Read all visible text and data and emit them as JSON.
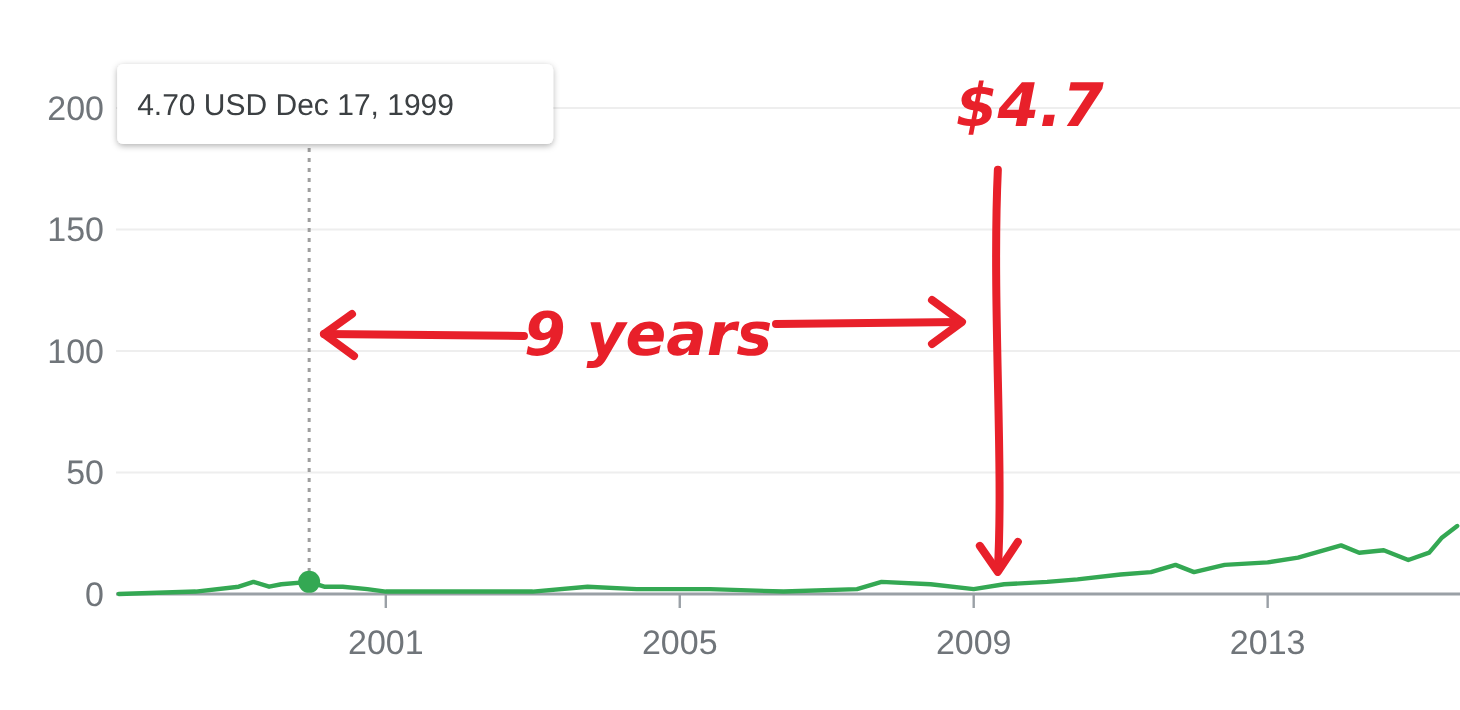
{
  "chart_data": {
    "type": "line",
    "xlim": [
      "1997-05-01",
      "2015-08-15"
    ],
    "xticks": [
      {
        "value": "2001-01-01",
        "label": "2001"
      },
      {
        "value": "2005-01-01",
        "label": "2005"
      },
      {
        "value": "2009-01-01",
        "label": "2009"
      },
      {
        "value": "2013-01-01",
        "label": "2013"
      }
    ],
    "ylim": [
      0,
      200
    ],
    "yticks": [
      0,
      50,
      100,
      150,
      200
    ],
    "grid": "y",
    "series": [
      {
        "color": "#34a853",
        "x": [
          "1997-05-15",
          "1998-06-01",
          "1999-01-01",
          "1999-03-15",
          "1999-06-01",
          "1999-08-01",
          "1999-12-17",
          "2000-03-01",
          "2000-06-01",
          "2000-10-01",
          "2001-01-01",
          "2002-01-01",
          "2003-01-01",
          "2003-10-01",
          "2004-06-01",
          "2005-06-01",
          "2006-06-01",
          "2007-06-01",
          "2007-10-01",
          "2008-06-01",
          "2009-01-01",
          "2009-06-01",
          "2010-01-01",
          "2010-06-01",
          "2011-01-01",
          "2011-06-01",
          "2011-10-01",
          "2012-01-01",
          "2012-06-01",
          "2013-01-01",
          "2013-06-01",
          "2014-01-01",
          "2014-04-01",
          "2014-08-01",
          "2014-12-01",
          "2015-03-15",
          "2015-05-15",
          "2015-08-01"
        ],
        "values": [
          0,
          1,
          3,
          5,
          3,
          4,
          5,
          3,
          3,
          2,
          1,
          1,
          1,
          3,
          2,
          2,
          1,
          2,
          5,
          4,
          2,
          4,
          5,
          6,
          8,
          9,
          12,
          9,
          12,
          13,
          15,
          20,
          17,
          18,
          14,
          17,
          23,
          28
        ]
      },
      {
        "type": "scatter",
        "color": "#34a853",
        "x": [
          "1999-12-17"
        ],
        "values": [
          5
        ]
      }
    ],
    "ref_lines": [
      {
        "axis": "x",
        "value": "1999-12-17",
        "color": "#9e9e9e",
        "line_style": "dotted"
      }
    ],
    "annotations": [
      "4.70 USD  Dec 17, 1999",
      {
        "text": "$4.7",
        "x": "2009-05-01",
        "y": 5
      },
      "9 years"
    ]
  }
}
